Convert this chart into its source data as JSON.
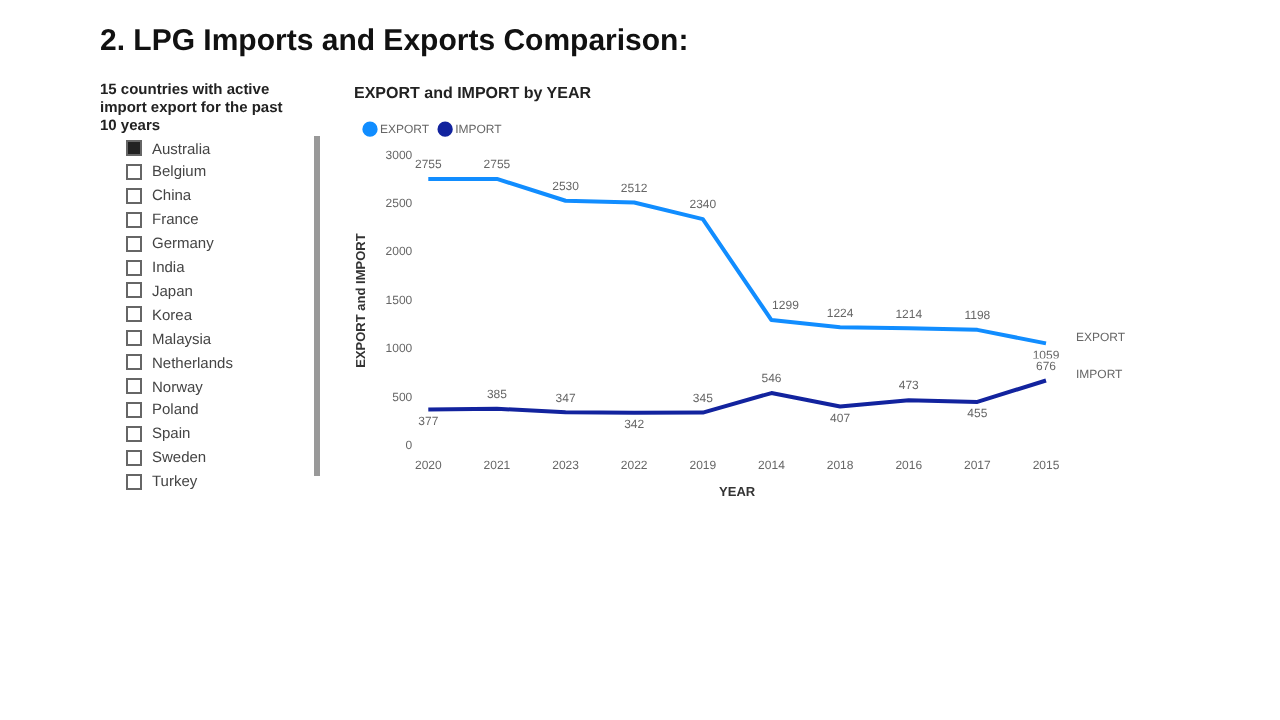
{
  "chart_data": [
    {
      "type": "other",
      "title": "2. LPG Imports and Exports Comparison:",
      "subtitle": "15 countries with active import export for the past 10 years",
      "categories": [
        "Australia",
        "Belgium",
        "China",
        "France",
        "Germany",
        "India",
        "Japan",
        "Korea",
        "Malaysia",
        "Netherlands",
        "Norway",
        "Poland",
        "Spain",
        "Sweden",
        "Turkey"
      ]
    },
    {
      "type": "line",
      "title": "EXPORT and IMPORT by YEAR",
      "xlabel": "YEAR",
      "ylabel": "EXPORT and IMPORT",
      "categories": [
        "2020",
        "2021",
        "2023",
        "2022",
        "2019",
        "2014",
        "2018",
        "2016",
        "2017",
        "2015"
      ],
      "series": [
        {
          "name": "EXPORT",
          "color": "#118dff",
          "values": [
            2755,
            2755,
            2530,
            2512,
            2340,
            1299,
            1224,
            1214,
            1198,
            1059
          ]
        },
        {
          "name": "IMPORT",
          "color": "#12239e",
          "values": [
            377,
            385,
            347,
            342,
            345,
            546,
            407,
            473,
            455,
            676
          ]
        }
      ],
      "ylim": [
        0,
        3000
      ],
      "yticks": [
        0,
        500,
        1000,
        1500,
        2000,
        2500,
        3000
      ],
      "grid": false,
      "legend": "top left",
      "data_labels": true,
      "marker": "none",
      "line_style": "solid"
    }
  ]
}
